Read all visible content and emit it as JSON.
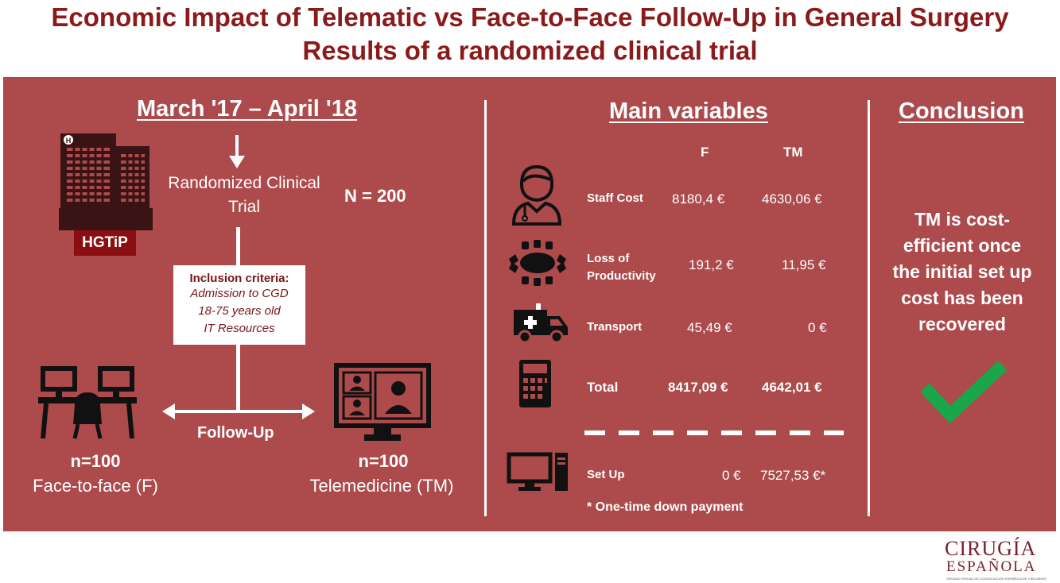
{
  "title": {
    "line1": "Economic Impact of Telematic vs Face-to-Face Follow-Up in General Surgery",
    "line2": "Results of a randomized clinical trial"
  },
  "left": {
    "period": "March '17 – April '18",
    "hospital_label": "HGTiP",
    "design_line1": "Randomized Clinical",
    "design_line2": "Trial",
    "sample_size": "N = 200",
    "inclusion": {
      "title": "Inclusion criteria:",
      "items": [
        "Admission to CGD",
        "18-75 years old",
        "IT Resources"
      ]
    },
    "followup_label": "Follow-Up",
    "group_f": {
      "n": "n=100",
      "label": "Face-to-face (F)"
    },
    "group_tm": {
      "n": "n=100",
      "label": "Telemedicine (TM)"
    }
  },
  "middle": {
    "title": "Main variables",
    "col_f": "F",
    "col_tm": "TM",
    "rows": [
      {
        "label": "Staff Cost",
        "f": "8180,4  €",
        "tm": "4630,06 €",
        "icon": "doctor-icon"
      },
      {
        "label_line1": "Loss of",
        "label_line2": "Productivity",
        "f": "191,2 €",
        "tm": "11,95 €",
        "icon": "meeting-icon"
      },
      {
        "label": "Transport",
        "f": "45,49 €",
        "tm": "0  €",
        "icon": "ambulance-icon"
      },
      {
        "label": "Total",
        "f": "8417,09 €",
        "tm": "4642,01 €",
        "icon": "calculator-icon"
      },
      {
        "label": "Set Up",
        "f": "0 €",
        "tm": "7527,53 €*",
        "icon": "computer-icon"
      }
    ],
    "footnote": "* One-time down payment"
  },
  "right": {
    "title": "Conclusion",
    "lines": [
      "TM is cost-",
      "efficient once",
      "the initial set up",
      "cost has been",
      "recovered"
    ],
    "check_color": "#1aa64a"
  },
  "logo": {
    "line1": "CIRUGÍA",
    "line2": "ESPAÑOLA",
    "subtitle": "ÓRGANO OFICIAL DE LA ASOCIACIÓN ESPAÑOLA DE CIRUJANOS"
  },
  "colors": {
    "panel": "#ac4a4c",
    "title": "#8b1a1a",
    "accent_text": "#7a1515"
  }
}
